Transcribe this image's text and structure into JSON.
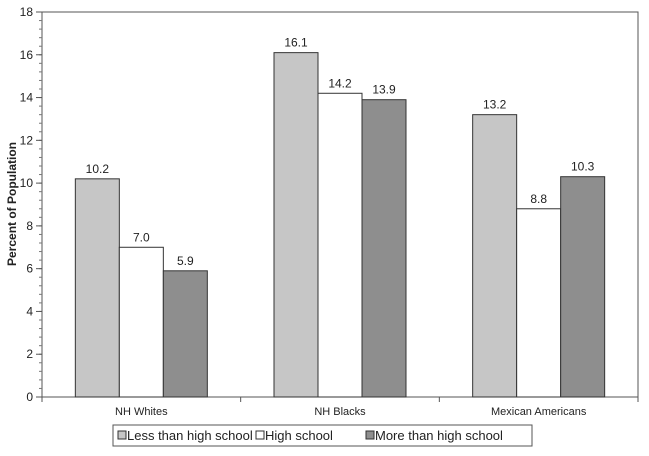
{
  "chart_data": {
    "type": "bar",
    "title": "",
    "xlabel": "",
    "ylabel": "Percent of Population",
    "ylim": [
      0,
      18
    ],
    "yticks": [
      0,
      2,
      4,
      6,
      8,
      10,
      12,
      14,
      16,
      18
    ],
    "categories": [
      "NH Whites",
      "NH Blacks",
      "Mexican Americans"
    ],
    "series": [
      {
        "name": "Less than high school",
        "values": [
          10.2,
          16.1,
          13.2
        ],
        "labels": [
          "10.2",
          "16.1",
          "13.2"
        ],
        "color": "#c6c6c6"
      },
      {
        "name": "High school",
        "values": [
          7.0,
          14.2,
          8.8
        ],
        "labels": [
          "7.0",
          "14.2",
          "8.8"
        ],
        "color": "#ffffff"
      },
      {
        "name": "More than high school",
        "values": [
          5.9,
          13.9,
          10.3
        ],
        "labels": [
          "5.9",
          "13.9",
          "10.3"
        ],
        "color": "#8e8e8e"
      }
    ],
    "legend_position": "bottom",
    "grid": false
  }
}
